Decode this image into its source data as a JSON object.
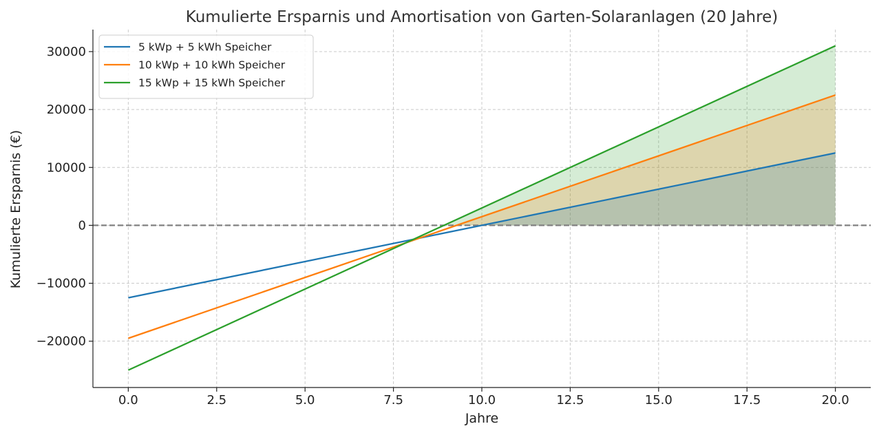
{
  "chart_data": {
    "type": "line",
    "title": "Kumulierte Ersparnis und Amortisation von Garten-Solaranlagen (20 Jahre)",
    "xlabel": "Jahre",
    "ylabel": "Kumulierte Ersparnis (€)",
    "xlim": [
      -1,
      21
    ],
    "ylim": [
      -28000,
      33800
    ],
    "xticks": [
      0,
      2.5,
      5,
      7.5,
      10,
      12.5,
      15,
      17.5,
      20
    ],
    "xtick_labels": [
      "0.0",
      "2.5",
      "5.0",
      "7.5",
      "10.0",
      "12.5",
      "15.0",
      "17.5",
      "20.0"
    ],
    "yticks": [
      -20000,
      -10000,
      0,
      10000,
      20000,
      30000
    ],
    "ytick_labels": [
      "−20000",
      "−10000",
      "0",
      "10000",
      "20000",
      "30000"
    ],
    "grid": true,
    "legend_position": "top-left",
    "zero_line": {
      "y": 0,
      "style": "dashed",
      "color": "#808080"
    },
    "series": [
      {
        "name": "5 kWp + 5 kWh Speicher",
        "color": "#1f77b4",
        "fill_color": "#1f77b4",
        "x": [
          0,
          20
        ],
        "y": [
          -12500,
          12500
        ],
        "fill_positive": true
      },
      {
        "name": "10 kWp + 10 kWh Speicher",
        "color": "#ff7f0e",
        "fill_color": "#ff7f0e",
        "x": [
          0,
          20
        ],
        "y": [
          -19500,
          22500
        ],
        "fill_positive": true
      },
      {
        "name": "15 kWp + 15 kWh Speicher",
        "color": "#2ca02c",
        "fill_color": "#2ca02c",
        "x": [
          0,
          20
        ],
        "y": [
          -25000,
          31000
        ],
        "fill_positive": true
      }
    ]
  }
}
